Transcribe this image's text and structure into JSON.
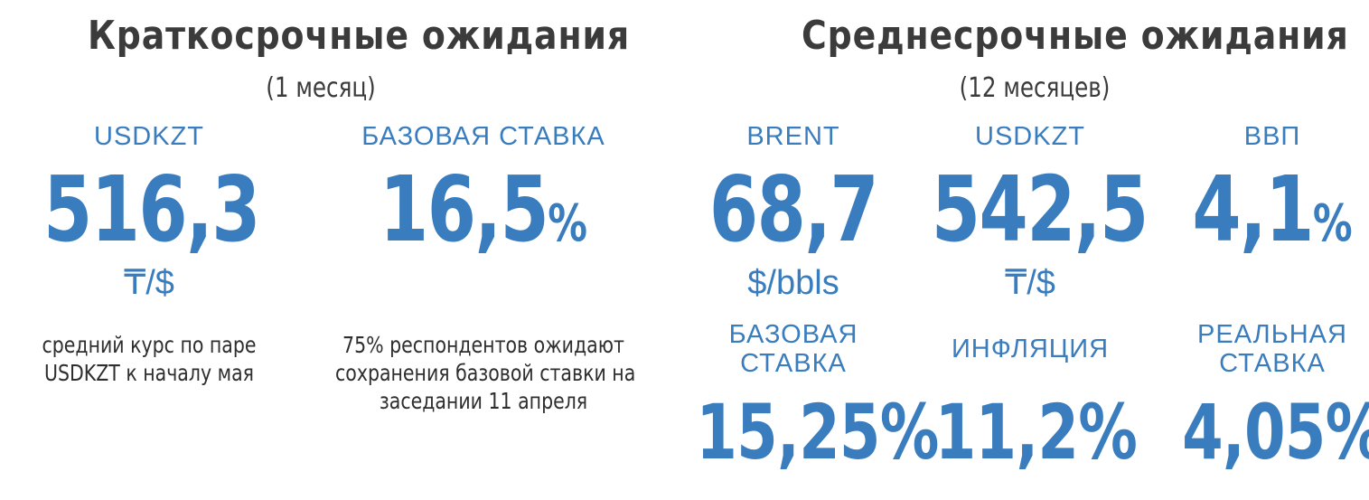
{
  "left": {
    "title": "Краткосрочные ожидания",
    "subtitle": "(1 месяц)",
    "metrics": [
      {
        "label": "USDKZT",
        "value": "516,3",
        "unit": "₸/$",
        "note_line1": "средний курс по паре",
        "note_line2": "USDKZT к началу мая"
      },
      {
        "label": "БАЗОВАЯ СТАВКА",
        "value": "16,5",
        "suffix": "%",
        "note_line1": "75% респондентов ожидают",
        "note_line2": "сохранения базовой ставки на",
        "note_line3": "заседании 11 апреля"
      }
    ]
  },
  "right": {
    "title": "Среднесрочные ожидания",
    "subtitle": "(12 месяцев)",
    "top_metrics": [
      {
        "label": "BRENT",
        "value": "68,7",
        "unit": "$/bbls"
      },
      {
        "label": "USDKZT",
        "value": "542,5",
        "unit": "₸/$"
      },
      {
        "label": "ВВП",
        "value": "4,1",
        "suffix": "%"
      }
    ],
    "bottom_metrics": [
      {
        "label_line1": "БАЗОВАЯ",
        "label_line2": "СТАВКА",
        "value": "15,25%"
      },
      {
        "label_line1": "ИНФЛЯЦИЯ",
        "value": "11,2%"
      },
      {
        "label_line1": "РЕАЛЬНАЯ",
        "label_line2": "СТАВКА",
        "value": "4,05%"
      }
    ]
  },
  "colors": {
    "accent": "#3a7dbf",
    "heading": "#3b3b3b",
    "text": "#2e2e2e"
  }
}
